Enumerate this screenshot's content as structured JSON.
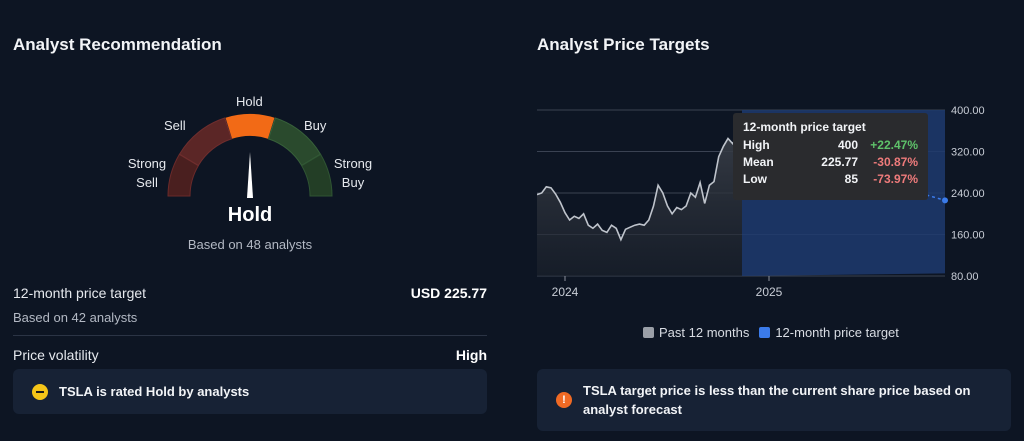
{
  "recommendation": {
    "title": "Analyst Recommendation",
    "gauge_labels": {
      "strong_sell": "Strong Sell",
      "sell": "Sell",
      "hold": "Hold",
      "buy": "Buy",
      "strong_buy": "Strong Buy"
    },
    "rating": "Hold",
    "analyst_count": "Based on 48 analysts",
    "colors": {
      "strong_sell": "#4a1f1f",
      "sell": "#5b2626",
      "hold": "#f26a16",
      "buy": "#2a4a2d",
      "strong_buy": "#233e26"
    }
  },
  "price_target": {
    "label": "12-month price target",
    "sub": "Based on 42 analysts",
    "value": "USD 225.77"
  },
  "volatility": {
    "label": "Price volatility",
    "value": "High"
  },
  "notice_left": "TSLA is rated Hold by analysts",
  "notice_right": "TSLA target price is less than the current share price based on analyst forecast",
  "targets": {
    "title": "Analyst Price Targets",
    "tooltip": {
      "title": "12-month price target",
      "rows": [
        {
          "name": "High",
          "value": "400",
          "pct": "+22.47%"
        },
        {
          "name": "Mean",
          "value": "225.77",
          "pct": "-30.87%"
        },
        {
          "name": "Low",
          "value": "85",
          "pct": "-73.97%"
        }
      ]
    },
    "legend": {
      "past": "Past 12 months",
      "target": "12-month price target"
    }
  },
  "chart_data": {
    "type": "line",
    "y_ticks": [
      "400.00",
      "320.00",
      "240.00",
      "160.00",
      "80.00"
    ],
    "ylim": [
      80,
      400
    ],
    "x_ticks": [
      "2024",
      "2025"
    ],
    "series": [
      {
        "values": [
          237,
          240,
          252,
          250,
          238,
          222,
          202,
          188,
          195,
          191,
          200,
          178,
          172,
          180,
          168,
          164,
          178,
          172,
          150,
          170,
          174,
          178,
          180,
          178,
          188,
          215,
          255,
          240,
          215,
          200,
          212,
          208,
          215,
          240,
          232,
          260,
          220,
          255,
          262,
          310,
          330,
          345,
          335,
          350,
          340
        ]
      }
    ],
    "target_high": 400,
    "target_mean": 225.77,
    "target_low": 85
  }
}
